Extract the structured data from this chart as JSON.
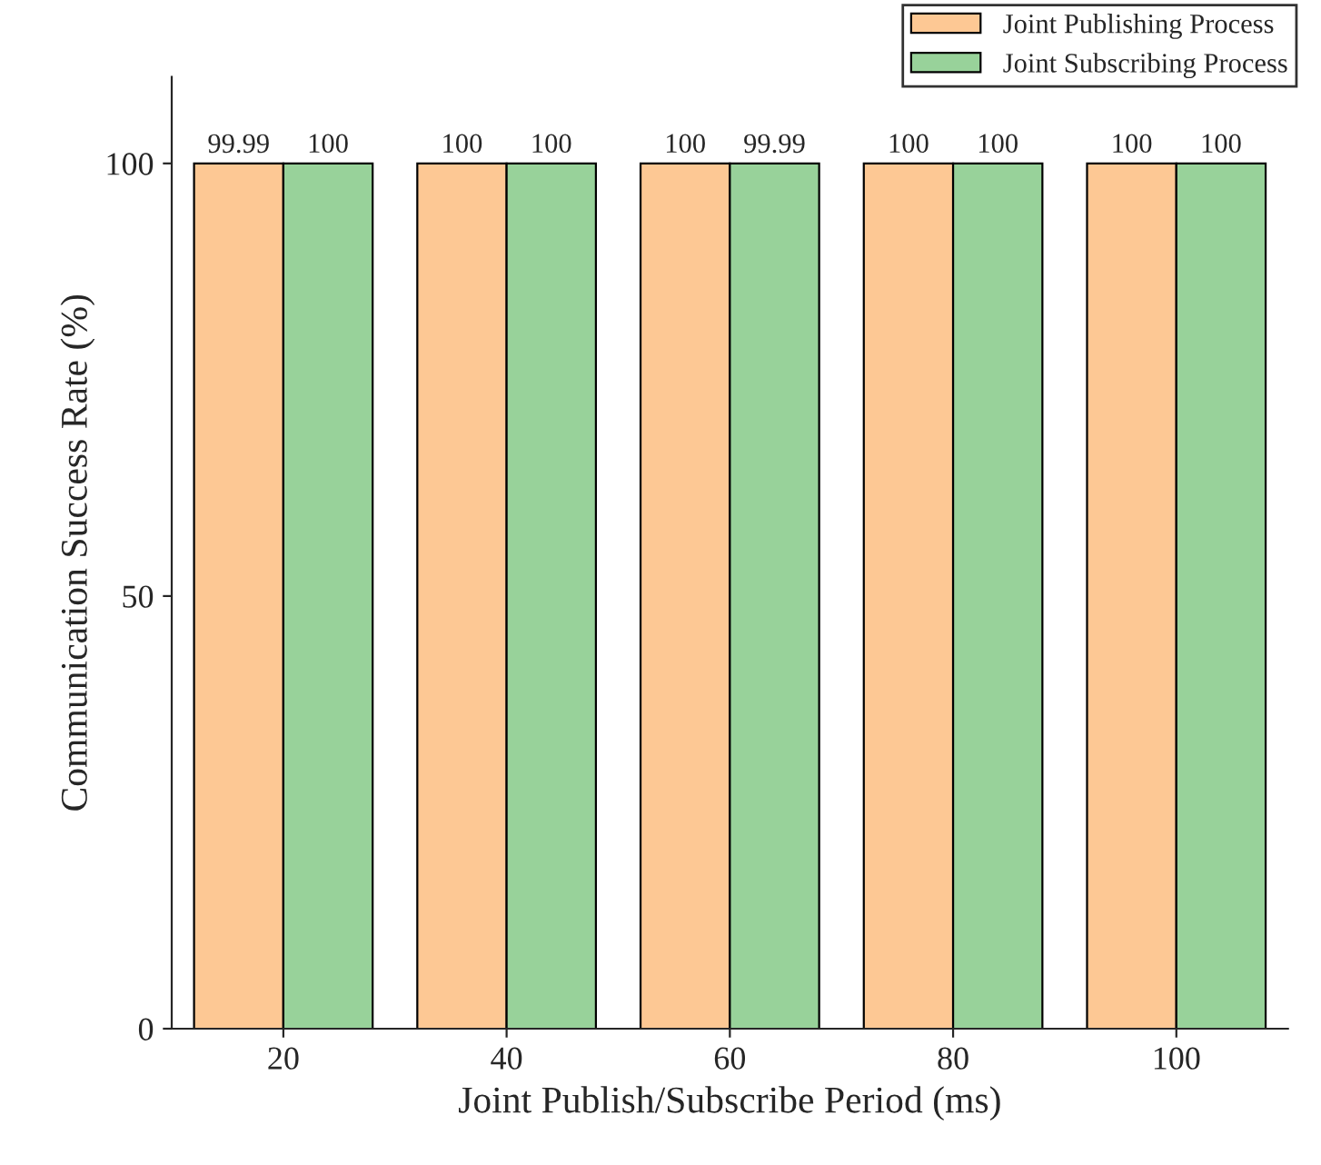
{
  "chart_data": {
    "type": "bar",
    "xlabel": "Joint Publish/Subscribe Period (ms)",
    "ylabel": "Communication Success Rate (%)",
    "categories": [
      "20",
      "40",
      "60",
      "80",
      "100"
    ],
    "series": [
      {
        "name": "Joint Publishing Process",
        "color": "#fdc894",
        "values": [
          99.99,
          100,
          100,
          100,
          100
        ]
      },
      {
        "name": "Joint Subscribing Process",
        "color": "#98d29a",
        "values": [
          100,
          100,
          99.99,
          100,
          100
        ]
      }
    ],
    "ylim": [
      0,
      110
    ],
    "yticks": [
      0,
      50,
      100
    ],
    "data_labels": true,
    "grid": false,
    "legend": "top right"
  }
}
